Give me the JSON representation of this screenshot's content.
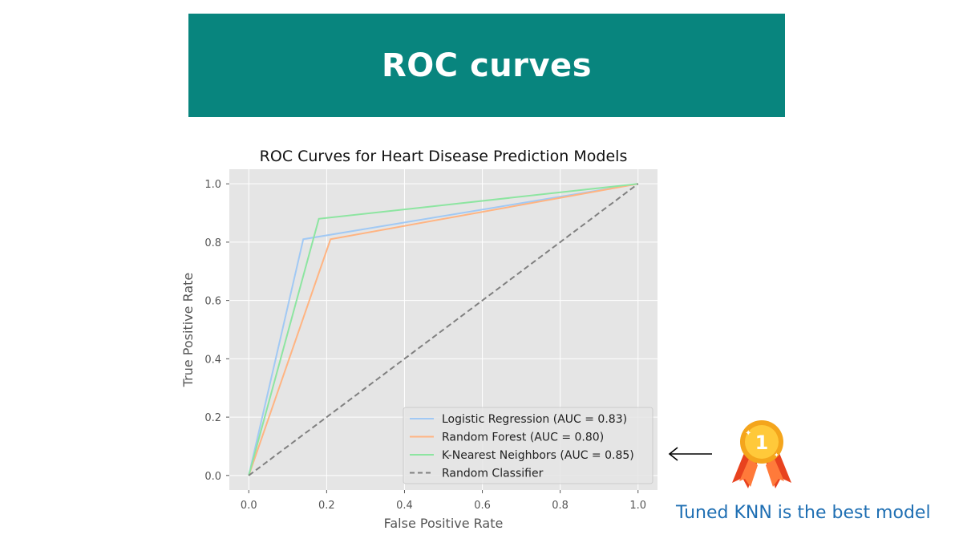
{
  "page": {
    "banner_title": "ROC curves",
    "annotation": "Tuned KNN is the best model"
  },
  "icons": {
    "arrow": "left-arrow-icon",
    "medal": "first-place-medal-icon",
    "medal_label": "1"
  },
  "colors": {
    "banner": "#08857e",
    "plot_background": "#e5e5e5",
    "annotation_text": "#1f6fb3"
  },
  "chart_data": {
    "type": "line",
    "title": "ROC Curves for Heart Disease Prediction Models",
    "xlabel": "False Positive Rate",
    "ylabel": "True Positive Rate",
    "xlim": [
      -0.05,
      1.05
    ],
    "ylim": [
      -0.05,
      1.05
    ],
    "xticks": [
      0.0,
      0.2,
      0.4,
      0.6,
      0.8,
      1.0
    ],
    "yticks": [
      0.0,
      0.2,
      0.4,
      0.6,
      0.8,
      1.0
    ],
    "tick_labels": [
      "0.0",
      "0.2",
      "0.4",
      "0.6",
      "0.8",
      "1.0"
    ],
    "grid": true,
    "legend_position": "lower-right",
    "series": [
      {
        "name": "Logistic Regression (AUC = 0.83)",
        "color": "#a1c9f4",
        "dashed": false,
        "x": [
          0.0,
          0.14,
          1.0
        ],
        "y": [
          0.0,
          0.81,
          1.0
        ]
      },
      {
        "name": "Random Forest (AUC = 0.80)",
        "color": "#ffb482",
        "dashed": false,
        "x": [
          0.0,
          0.21,
          1.0
        ],
        "y": [
          0.0,
          0.81,
          1.0
        ]
      },
      {
        "name": "K-Nearest Neighbors (AUC = 0.85)",
        "color": "#8de5a1",
        "dashed": false,
        "x": [
          0.0,
          0.18,
          1.0
        ],
        "y": [
          0.0,
          0.88,
          1.0
        ]
      },
      {
        "name": "Random Classifier",
        "color": "#808080",
        "dashed": true,
        "x": [
          0.0,
          1.0
        ],
        "y": [
          0.0,
          1.0
        ]
      }
    ]
  }
}
